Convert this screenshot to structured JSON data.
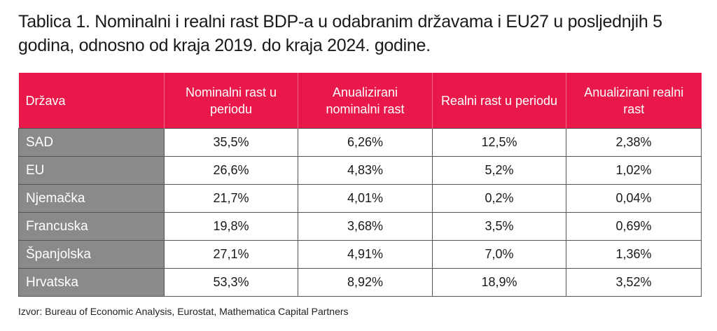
{
  "title": "Tablica 1. Nominalni i realni rast BDP-a u odabranim državama i EU27 u posljednjih 5 godina, odnosno od kraja 2019. do kraja 2024. godine.",
  "colors": {
    "header": "#e8194a",
    "country_cell": "#8a8a8a"
  },
  "table": {
    "headers": [
      "Država",
      "Nominalni rast u periodu",
      "Anualizirani nominalni rast",
      "Realni rast u periodu",
      "Anualizirani realni rast"
    ],
    "rows": [
      [
        "SAD",
        "35,5%",
        "6,26%",
        "12,5%",
        "2,38%"
      ],
      [
        "EU",
        "26,6%",
        "4,83%",
        "5,2%",
        "1,02%"
      ],
      [
        "Njemačka",
        "21,7%",
        "4,01%",
        "0,2%",
        "0,04%"
      ],
      [
        "Francuska",
        "19,8%",
        "3,68%",
        "3,5%",
        "0,69%"
      ],
      [
        "Španjolska",
        "27,1%",
        "4,91%",
        "7,0%",
        "1,36%"
      ],
      [
        "Hrvatska",
        "53,3%",
        "8,92%",
        "18,9%",
        "3,52%"
      ]
    ]
  },
  "source": "Izvor: Bureau of Economic Analysis, Eurostat, Mathematica Capital Partners"
}
